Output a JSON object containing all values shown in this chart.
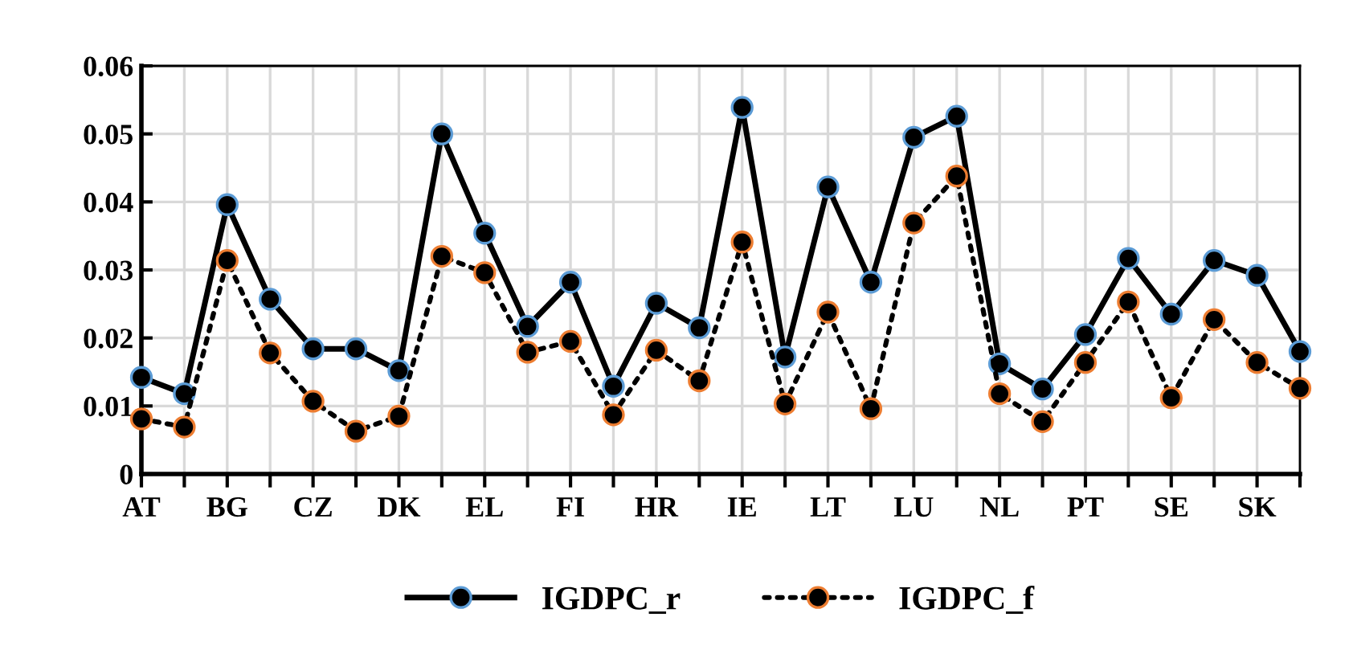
{
  "chart_data": {
    "type": "line",
    "categories": [
      "AT",
      null,
      "BG",
      null,
      "CZ",
      null,
      "DK",
      null,
      "EL",
      null,
      "FI",
      null,
      "HR",
      null,
      "IE",
      null,
      "LT",
      null,
      "LU",
      null,
      "NL",
      null,
      "PT",
      null,
      "SE",
      null,
      "SK",
      null
    ],
    "series": [
      {
        "name": "IGDPC_r",
        "color": "#000000",
        "line_style": "solid",
        "values": [
          0.0142,
          0.0118,
          0.0396,
          0.0257,
          0.0184,
          0.0184,
          0.0152,
          0.05,
          0.0354,
          0.0217,
          0.0282,
          0.0129,
          0.0251,
          0.0215,
          0.0539,
          0.0172,
          0.0422,
          0.0282,
          0.0495,
          0.0526,
          0.0162,
          0.0125,
          0.0205,
          0.0317,
          0.0235,
          0.0314,
          0.0292,
          0.018
        ]
      },
      {
        "name": "IGDPC_f",
        "color": "#000000",
        "line_style": "dotted",
        "values": [
          0.0081,
          0.0069,
          0.0314,
          0.0178,
          0.0107,
          0.0063,
          0.0085,
          0.032,
          0.0296,
          0.0179,
          0.0195,
          0.0087,
          0.0182,
          0.0137,
          0.0341,
          0.0103,
          0.0238,
          0.0096,
          0.0369,
          0.0438,
          0.0118,
          0.0077,
          0.0164,
          0.0253,
          0.0112,
          0.0227,
          0.0164,
          0.0126
        ]
      }
    ],
    "ylim": [
      0,
      0.06
    ],
    "yticks": [
      0,
      0.01,
      0.02,
      0.03,
      0.04,
      0.05,
      0.06
    ],
    "grid": true,
    "legend": "bottom",
    "marker": "circle"
  }
}
